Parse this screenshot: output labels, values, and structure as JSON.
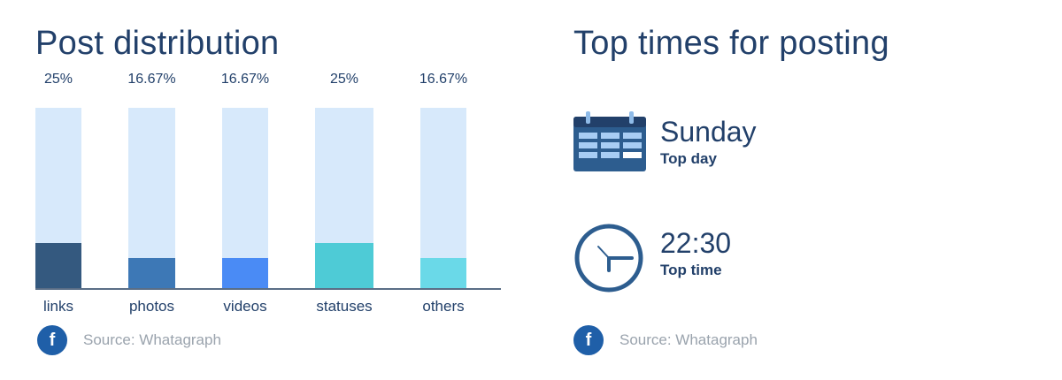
{
  "left_panel": {
    "title": "Post distribution",
    "source": {
      "icon": "facebook-icon",
      "label": "Source: Whatagraph"
    }
  },
  "chart_data": {
    "type": "bar",
    "categories": [
      "links",
      "photos",
      "videos",
      "statuses",
      "others"
    ],
    "values": [
      25,
      16.67,
      16.67,
      25,
      16.67
    ],
    "value_labels": [
      "25%",
      "16.67%",
      "16.67%",
      "25%",
      "16.67%"
    ],
    "ylim": [
      0,
      100
    ],
    "colors": [
      "#34597f",
      "#3d78b6",
      "#4a8bf5",
      "#4ecbd6",
      "#6ad9e8"
    ],
    "track_color": "#d7e9fb",
    "axis_color": "#5a6e86",
    "grid": false,
    "legend": "none"
  },
  "right_panel": {
    "title": "Top times for posting",
    "top_day": {
      "icon": "calendar-icon",
      "value": "Sunday",
      "caption": "Top day"
    },
    "top_time": {
      "icon": "clock-icon",
      "value": "22:30",
      "caption": "Top time"
    },
    "source": {
      "icon": "facebook-icon",
      "label": "Source: Whatagraph"
    }
  }
}
